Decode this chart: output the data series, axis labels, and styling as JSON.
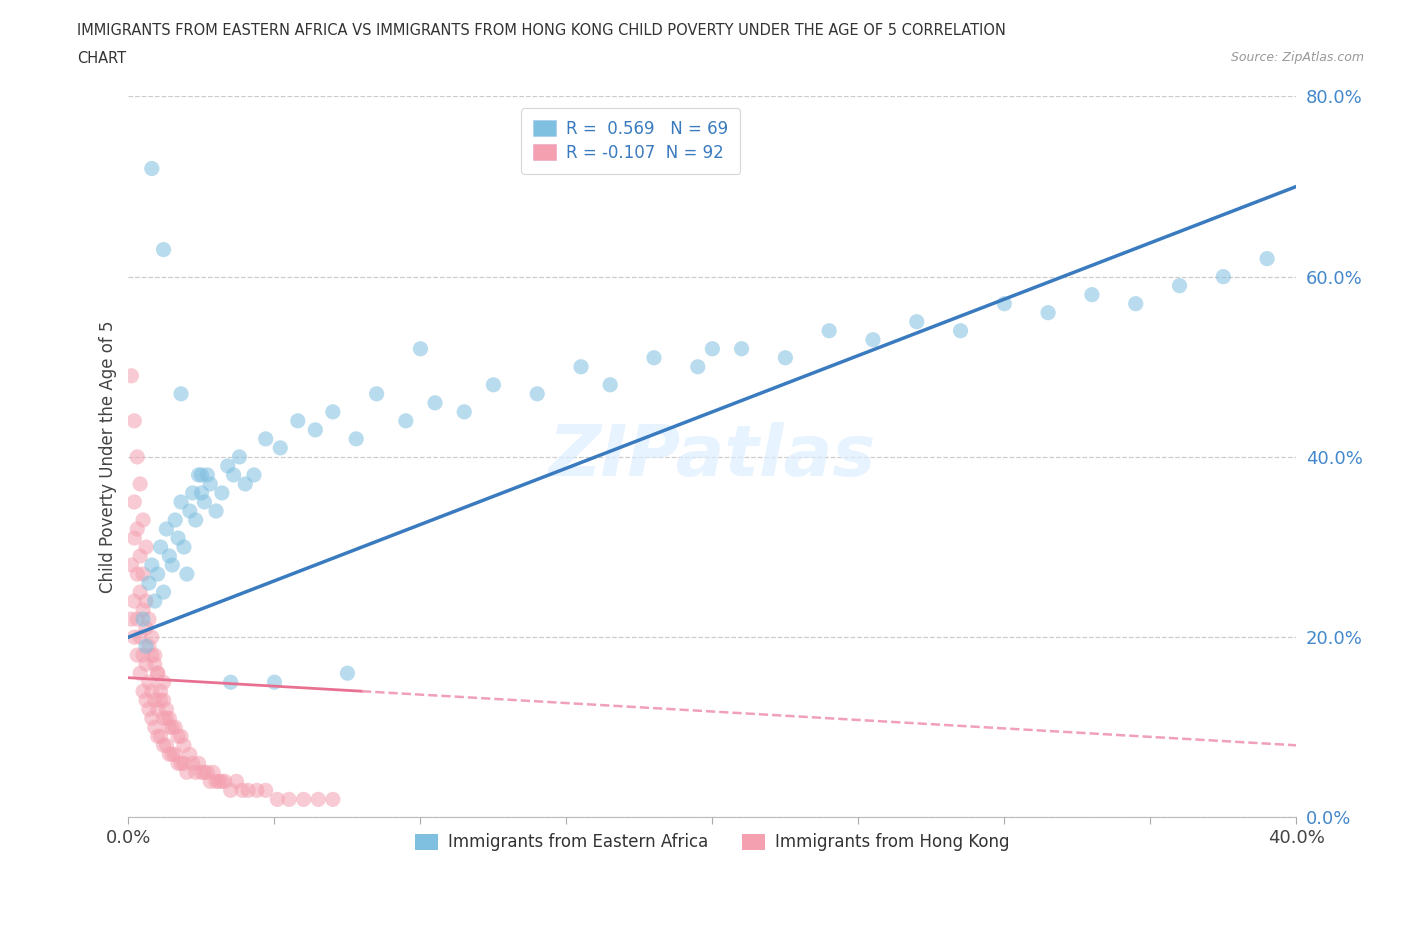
{
  "title_line1": "IMMIGRANTS FROM EASTERN AFRICA VS IMMIGRANTS FROM HONG KONG CHILD POVERTY UNDER THE AGE OF 5 CORRELATION",
  "title_line2": "CHART",
  "source_text": "Source: ZipAtlas.com",
  "ylabel": "Child Poverty Under the Age of 5",
  "xlim": [
    0.0,
    0.4
  ],
  "ylim": [
    0.0,
    0.8
  ],
  "xticks": [
    0.0,
    0.05,
    0.1,
    0.15,
    0.2,
    0.25,
    0.3,
    0.35,
    0.4
  ],
  "yticks": [
    0.0,
    0.2,
    0.4,
    0.6,
    0.8
  ],
  "xtick_labels": [
    "0.0%",
    "",
    "",
    "",
    "",
    "",
    "",
    "",
    "40.0%"
  ],
  "ytick_labels": [
    "0.0%",
    "20.0%",
    "40.0%",
    "60.0%",
    "80.0%"
  ],
  "eastern_africa_R": 0.569,
  "eastern_africa_N": 69,
  "hong_kong_R": -0.107,
  "hong_kong_N": 92,
  "eastern_africa_color": "#7fbfdf",
  "hong_kong_color": "#f4a0b0",
  "trend_blue": "#3a7bbf",
  "trend_pink": "#e87090",
  "trend_pink_dash": "#f0a0b8",
  "watermark": "ZIPatlas",
  "legend_label_1": "Immigrants from Eastern Africa",
  "legend_label_2": "Immigrants from Hong Kong",
  "blue_trend_x0": 0.0,
  "blue_trend_y0": 0.2,
  "blue_trend_x1": 0.4,
  "blue_trend_y1": 0.7,
  "pink_trend_x0": 0.0,
  "pink_trend_y0": 0.155,
  "pink_trend_x1": 0.4,
  "pink_trend_y1": 0.08,
  "eastern_africa_x": [
    0.005,
    0.006,
    0.007,
    0.008,
    0.009,
    0.01,
    0.011,
    0.012,
    0.013,
    0.014,
    0.015,
    0.016,
    0.017,
    0.018,
    0.019,
    0.02,
    0.021,
    0.022,
    0.023,
    0.024,
    0.025,
    0.026,
    0.027,
    0.028,
    0.03,
    0.032,
    0.034,
    0.036,
    0.038,
    0.04,
    0.043,
    0.047,
    0.052,
    0.058,
    0.064,
    0.07,
    0.078,
    0.085,
    0.095,
    0.105,
    0.115,
    0.125,
    0.14,
    0.155,
    0.165,
    0.18,
    0.195,
    0.21,
    0.225,
    0.24,
    0.255,
    0.27,
    0.285,
    0.3,
    0.315,
    0.33,
    0.345,
    0.36,
    0.375,
    0.39,
    0.008,
    0.012,
    0.018,
    0.025,
    0.035,
    0.05,
    0.075,
    0.1,
    0.2
  ],
  "eastern_africa_y": [
    0.22,
    0.19,
    0.26,
    0.28,
    0.24,
    0.27,
    0.3,
    0.25,
    0.32,
    0.29,
    0.28,
    0.33,
    0.31,
    0.35,
    0.3,
    0.27,
    0.34,
    0.36,
    0.33,
    0.38,
    0.36,
    0.35,
    0.38,
    0.37,
    0.34,
    0.36,
    0.39,
    0.38,
    0.4,
    0.37,
    0.38,
    0.42,
    0.41,
    0.44,
    0.43,
    0.45,
    0.42,
    0.47,
    0.44,
    0.46,
    0.45,
    0.48,
    0.47,
    0.5,
    0.48,
    0.51,
    0.5,
    0.52,
    0.51,
    0.54,
    0.53,
    0.55,
    0.54,
    0.57,
    0.56,
    0.58,
    0.57,
    0.59,
    0.6,
    0.62,
    0.72,
    0.63,
    0.47,
    0.38,
    0.15,
    0.15,
    0.16,
    0.52,
    0.52
  ],
  "hong_kong_x": [
    0.001,
    0.001,
    0.002,
    0.002,
    0.002,
    0.003,
    0.003,
    0.003,
    0.004,
    0.004,
    0.004,
    0.005,
    0.005,
    0.005,
    0.006,
    0.006,
    0.006,
    0.007,
    0.007,
    0.007,
    0.008,
    0.008,
    0.008,
    0.009,
    0.009,
    0.009,
    0.01,
    0.01,
    0.01,
    0.011,
    0.011,
    0.012,
    0.012,
    0.012,
    0.013,
    0.013,
    0.014,
    0.014,
    0.015,
    0.015,
    0.016,
    0.016,
    0.017,
    0.017,
    0.018,
    0.018,
    0.019,
    0.019,
    0.02,
    0.021,
    0.022,
    0.023,
    0.024,
    0.025,
    0.026,
    0.027,
    0.028,
    0.029,
    0.03,
    0.031,
    0.032,
    0.033,
    0.035,
    0.037,
    0.039,
    0.041,
    0.044,
    0.047,
    0.051,
    0.055,
    0.06,
    0.065,
    0.07,
    0.002,
    0.003,
    0.004,
    0.005,
    0.006,
    0.007,
    0.008,
    0.009,
    0.01,
    0.011,
    0.012,
    0.013,
    0.014,
    0.001,
    0.002,
    0.003,
    0.004,
    0.005,
    0.006
  ],
  "hong_kong_y": [
    0.22,
    0.28,
    0.2,
    0.24,
    0.31,
    0.18,
    0.22,
    0.27,
    0.16,
    0.2,
    0.25,
    0.14,
    0.18,
    0.23,
    0.13,
    0.17,
    0.21,
    0.12,
    0.15,
    0.19,
    0.11,
    0.14,
    0.18,
    0.1,
    0.13,
    0.17,
    0.09,
    0.12,
    0.16,
    0.09,
    0.13,
    0.08,
    0.11,
    0.15,
    0.08,
    0.12,
    0.07,
    0.11,
    0.07,
    0.1,
    0.07,
    0.1,
    0.06,
    0.09,
    0.06,
    0.09,
    0.06,
    0.08,
    0.05,
    0.07,
    0.06,
    0.05,
    0.06,
    0.05,
    0.05,
    0.05,
    0.04,
    0.05,
    0.04,
    0.04,
    0.04,
    0.04,
    0.03,
    0.04,
    0.03,
    0.03,
    0.03,
    0.03,
    0.02,
    0.02,
    0.02,
    0.02,
    0.02,
    0.35,
    0.32,
    0.29,
    0.27,
    0.24,
    0.22,
    0.2,
    0.18,
    0.16,
    0.14,
    0.13,
    0.11,
    0.1,
    0.49,
    0.44,
    0.4,
    0.37,
    0.33,
    0.3
  ]
}
